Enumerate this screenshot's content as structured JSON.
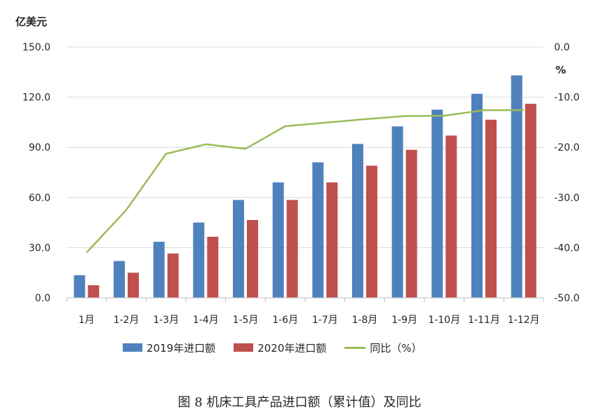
{
  "caption": "图 8  机床工具产品进口额（累计值）及同比",
  "chart_data": {
    "type": "bar",
    "categories": [
      "1月",
      "1-2月",
      "1-3月",
      "1-4月",
      "1-5月",
      "1-6月",
      "1-7月",
      "1-8月",
      "1-9月",
      "1-10月",
      "1-11月",
      "1-12月"
    ],
    "series": [
      {
        "name": "2019年进口额",
        "type": "bar",
        "axis": "left",
        "color": "#4f81bd",
        "values": [
          13.5,
          22.0,
          33.5,
          45.0,
          58.5,
          69.0,
          81.0,
          92.0,
          102.5,
          112.5,
          122.0,
          133.0
        ]
      },
      {
        "name": "2020年进口额",
        "type": "bar",
        "axis": "left",
        "color": "#c0504d",
        "values": [
          7.5,
          15.0,
          26.5,
          36.5,
          46.5,
          58.5,
          69.0,
          79.0,
          88.5,
          97.0,
          106.5,
          116.0
        ]
      },
      {
        "name": "同比（%）",
        "type": "line",
        "axis": "right",
        "color": "#9bbb59",
        "values": [
          -41.0,
          -32.5,
          -21.3,
          -19.4,
          -20.3,
          -15.8,
          -15.1,
          -14.4,
          -13.8,
          -13.7,
          -12.6,
          -12.6
        ]
      }
    ],
    "ylabel_left": "亿美元",
    "ylabel_right": "%",
    "ylim_left": [
      0,
      150
    ],
    "ylim_right": [
      -50,
      0
    ],
    "yticks_left": [
      "0.0",
      "30.0",
      "60.0",
      "90.0",
      "120.0",
      "150.0"
    ],
    "yticks_right": [
      "-50.0",
      "-40.0",
      "-30.0",
      "-20.0",
      "-10.0",
      "0.0"
    ],
    "grid": true,
    "legend_position": "bottom"
  }
}
